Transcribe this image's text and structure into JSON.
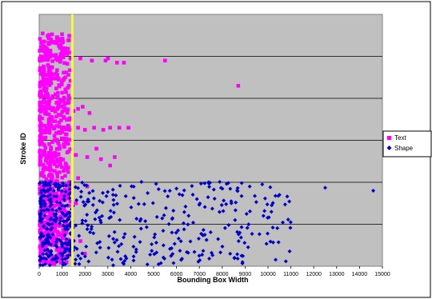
{
  "chart_data": {
    "type": "scatter",
    "title": "",
    "xlabel": "Bounding Box Width",
    "ylabel": "Stroke ID",
    "xlim": [
      0,
      15000
    ],
    "ylim": [
      0,
      6
    ],
    "x_ticks": [
      "0",
      "1000",
      "2000",
      "3000",
      "4000",
      "5000",
      "6000",
      "7000",
      "8000",
      "9000",
      "10000",
      "11000",
      "12000",
      "13000",
      "14000",
      "15000"
    ],
    "y_tick_labels_shown": false,
    "grid": "horizontal",
    "plot_background": "#c0c0c0",
    "legend_position": "right",
    "threshold_line": {
      "x": 1450,
      "color": "#ffff00"
    },
    "series": [
      {
        "name": "Text",
        "color": "#ff00ff",
        "marker": "square",
        "outliers": [
          [
            1800,
            4.95
          ],
          [
            2300,
            4.9
          ],
          [
            2900,
            4.9
          ],
          [
            3000,
            4.95
          ],
          [
            3400,
            4.85
          ],
          [
            3700,
            4.85
          ],
          [
            5500,
            4.9
          ],
          [
            8700,
            4.3
          ],
          [
            1700,
            3.3
          ],
          [
            2000,
            3.25
          ],
          [
            2400,
            3.3
          ],
          [
            2800,
            3.25
          ],
          [
            3100,
            3.3
          ],
          [
            3500,
            3.3
          ],
          [
            3900,
            3.3
          ],
          [
            1600,
            2.65
          ],
          [
            2100,
            2.6
          ],
          [
            2700,
            2.55
          ],
          [
            3300,
            2.6
          ],
          [
            1500,
            3.7
          ],
          [
            1700,
            3.75
          ],
          [
            1900,
            3.8
          ],
          [
            2200,
            3.65
          ],
          [
            2500,
            2.8
          ],
          [
            3100,
            2.4
          ],
          [
            1700,
            2.1
          ],
          [
            2100,
            1.9
          ],
          [
            1600,
            1.5
          ],
          [
            1800,
            0.6
          ],
          [
            2000,
            0.3
          ]
        ]
      },
      {
        "name": "Shape",
        "color": "#0000cc",
        "marker": "diamond",
        "outliers": [
          [
            12500,
            1.87
          ],
          [
            14600,
            1.8
          ],
          [
            10500,
            1.7
          ],
          [
            9200,
            1.9
          ],
          [
            7400,
            2.0
          ],
          [
            6000,
            1.85
          ],
          [
            8400,
            1.5
          ],
          [
            9800,
            1.2
          ]
        ]
      }
    ]
  }
}
